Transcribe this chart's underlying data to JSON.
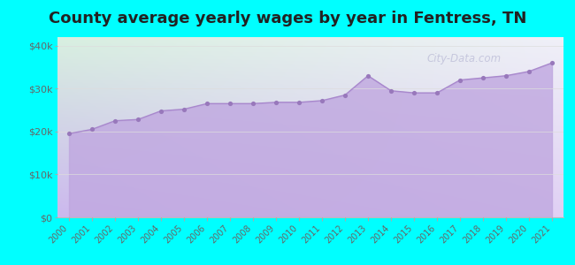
{
  "title": "County average yearly wages by year in Fentress, TN",
  "years": [
    2000,
    2001,
    2002,
    2003,
    2004,
    2005,
    2006,
    2007,
    2008,
    2009,
    2010,
    2011,
    2012,
    2013,
    2014,
    2015,
    2016,
    2017,
    2018,
    2019,
    2020,
    2021
  ],
  "wages": [
    19500,
    20500,
    22500,
    22800,
    24800,
    25200,
    26500,
    26500,
    26500,
    26800,
    26800,
    27200,
    28500,
    33000,
    29500,
    29000,
    29000,
    32000,
    32500,
    33000,
    34000,
    36000
  ],
  "fill_color_top": "#c8b8e8",
  "fill_color_bottom": "#c8b8e8",
  "line_color": "#a888cc",
  "dot_color": "#9878bb",
  "outer_bg": "#00ffff",
  "plot_bg_topleft": "#d8f0e0",
  "plot_bg_bottomright": "#d8c8ee",
  "title_fontsize": 13,
  "title_fontweight": "bold",
  "ylim": [
    0,
    42000
  ],
  "yticks": [
    0,
    10000,
    20000,
    30000,
    40000
  ],
  "ytick_labels": [
    "$0",
    "$10k",
    "$20k",
    "$30k",
    "$40k"
  ],
  "watermark": "City-Data.com"
}
